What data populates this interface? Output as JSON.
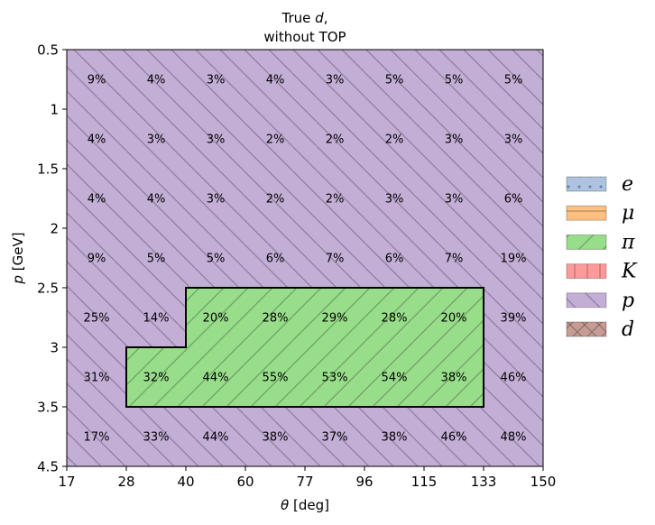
{
  "chart_data": {
    "type": "heatmap",
    "title": {
      "prefix": "True ",
      "var": "d",
      "suffix": ",",
      "line2": "without TOP"
    },
    "xlabel": {
      "var": "θ",
      "unit": " [deg]"
    },
    "ylabel": {
      "var": "p",
      "unit": " [GeV]"
    },
    "x_ticks": [
      "17",
      "28",
      "40",
      "60",
      "77",
      "96",
      "115",
      "133",
      "150"
    ],
    "y_ticks": [
      "0.5",
      "1",
      "1.5",
      "2",
      "2.5",
      "3",
      "3.5",
      "4.5"
    ],
    "cells": [
      [
        "9%",
        "4%",
        "3%",
        "4%",
        "3%",
        "5%",
        "5%",
        "5%"
      ],
      [
        "4%",
        "3%",
        "3%",
        "2%",
        "2%",
        "2%",
        "3%",
        "3%"
      ],
      [
        "4%",
        "4%",
        "3%",
        "2%",
        "2%",
        "3%",
        "3%",
        "6%"
      ],
      [
        "9%",
        "5%",
        "5%",
        "6%",
        "7%",
        "6%",
        "7%",
        "19%"
      ],
      [
        "25%",
        "14%",
        "20%",
        "28%",
        "29%",
        "28%",
        "20%",
        "39%"
      ],
      [
        "31%",
        "32%",
        "44%",
        "55%",
        "53%",
        "54%",
        "38%",
        "46%"
      ],
      [
        "17%",
        "33%",
        "44%",
        "38%",
        "37%",
        "38%",
        "46%",
        "48%"
      ]
    ],
    "categories": [
      [
        "p",
        "p",
        "p",
        "p",
        "p",
        "p",
        "p",
        "p"
      ],
      [
        "p",
        "p",
        "p",
        "p",
        "p",
        "p",
        "p",
        "p"
      ],
      [
        "p",
        "p",
        "p",
        "p",
        "p",
        "p",
        "p",
        "p"
      ],
      [
        "p",
        "p",
        "p",
        "p",
        "p",
        "p",
        "p",
        "p"
      ],
      [
        "p",
        "p",
        "pi",
        "pi",
        "pi",
        "pi",
        "pi",
        "p"
      ],
      [
        "p",
        "pi",
        "pi",
        "pi",
        "pi",
        "pi",
        "pi",
        "p"
      ],
      [
        "p",
        "p",
        "p",
        "p",
        "p",
        "p",
        "p",
        "p"
      ]
    ],
    "highlight_category": "pi",
    "legend": [
      {
        "key": "e",
        "label": "e",
        "color": "#aec3df",
        "hatch": "dots"
      },
      {
        "key": "mu",
        "label": "μ",
        "color": "#ffbf80",
        "hatch": "horizontal"
      },
      {
        "key": "pi",
        "label": "π",
        "color": "#98dd8a",
        "hatch": "diagonal-up"
      },
      {
        "key": "K",
        "label": "K",
        "color": "#ff9a9a",
        "hatch": "vertical"
      },
      {
        "key": "p",
        "label": "p",
        "color": "#c3aed6",
        "hatch": "diagonal-down"
      },
      {
        "key": "d",
        "label": "d",
        "color": "#c69c94",
        "hatch": "cross"
      }
    ],
    "legend_position": "right"
  }
}
